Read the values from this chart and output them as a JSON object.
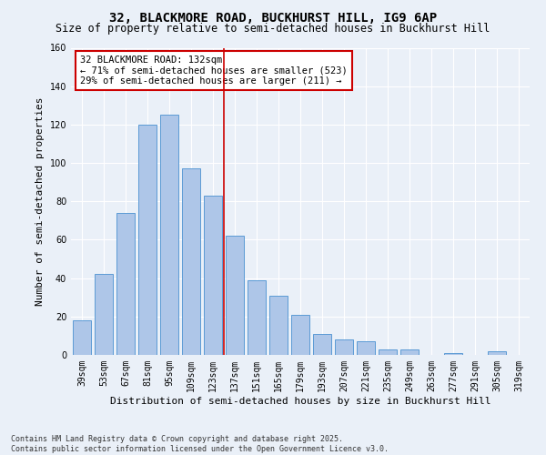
{
  "title": "32, BLACKMORE ROAD, BUCKHURST HILL, IG9 6AP",
  "subtitle": "Size of property relative to semi-detached houses in Buckhurst Hill",
  "xlabel": "Distribution of semi-detached houses by size in Buckhurst Hill",
  "ylabel": "Number of semi-detached properties",
  "categories": [
    "39sqm",
    "53sqm",
    "67sqm",
    "81sqm",
    "95sqm",
    "109sqm",
    "123sqm",
    "137sqm",
    "151sqm",
    "165sqm",
    "179sqm",
    "193sqm",
    "207sqm",
    "221sqm",
    "235sqm",
    "249sqm",
    "263sqm",
    "277sqm",
    "291sqm",
    "305sqm",
    "319sqm"
  ],
  "values": [
    18,
    42,
    74,
    120,
    125,
    97,
    83,
    62,
    39,
    31,
    21,
    11,
    8,
    7,
    3,
    3,
    0,
    1,
    0,
    2,
    0
  ],
  "bar_color": "#aec6e8",
  "bar_edge_color": "#5b9bd5",
  "vline_x": 6,
  "annotation_text": "32 BLACKMORE ROAD: 132sqm\n← 71% of semi-detached houses are smaller (523)\n29% of semi-detached houses are larger (211) →",
  "annotation_box_color": "#ffffff",
  "annotation_box_edge": "#cc0000",
  "vline_color": "#cc0000",
  "ylim": [
    0,
    160
  ],
  "yticks": [
    0,
    20,
    40,
    60,
    80,
    100,
    120,
    140,
    160
  ],
  "bg_color": "#eaf0f8",
  "grid_color": "#ffffff",
  "footer": "Contains HM Land Registry data © Crown copyright and database right 2025.\nContains public sector information licensed under the Open Government Licence v3.0.",
  "title_fontsize": 10,
  "subtitle_fontsize": 8.5,
  "xlabel_fontsize": 8,
  "ylabel_fontsize": 8,
  "tick_fontsize": 7,
  "annotation_fontsize": 7.5,
  "footer_fontsize": 6
}
